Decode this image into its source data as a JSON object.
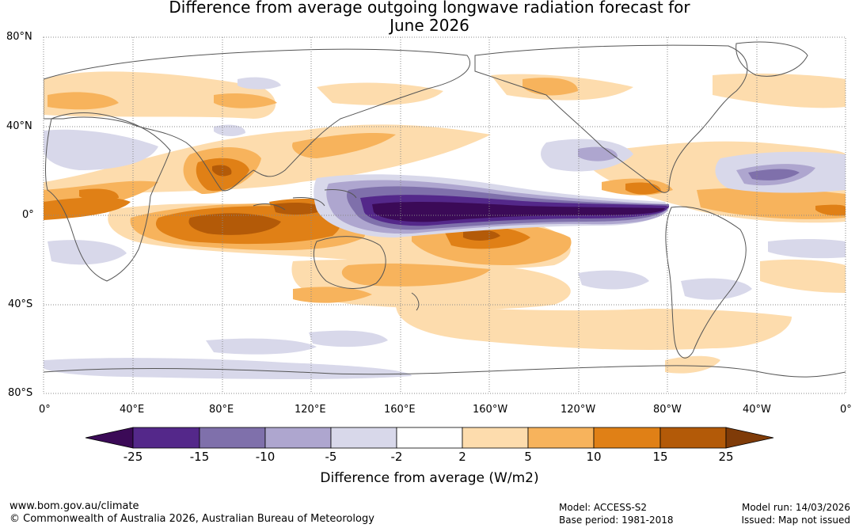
{
  "title": {
    "line1": "Difference from average outgoing longwave radiation forecast for",
    "line2": "June 2026"
  },
  "map": {
    "lat_labels": [
      "80°N",
      "40°N",
      "0°",
      "40°S",
      "80°S"
    ],
    "lon_labels": [
      "0°",
      "40°E",
      "80°E",
      "120°E",
      "160°E",
      "160°W",
      "120°W",
      "80°W",
      "40°W",
      "0°"
    ]
  },
  "colorbar": {
    "ticks": [
      "-25",
      "-15",
      "-10",
      "-5",
      "-2",
      "2",
      "5",
      "10",
      "15",
      "25"
    ],
    "colors": [
      "#3b0a57",
      "#54288a",
      "#7f70ab",
      "#aea6cf",
      "#d8d8ea",
      "#ffffff",
      "#fddcad",
      "#f7b35c",
      "#e08016",
      "#b35a08",
      "#7f3b08"
    ],
    "label": "Difference from average (W/m2)"
  },
  "footer": {
    "url": "www.bom.gov.au/climate",
    "copyright": "© Commonwealth of Australia 2026, Australian Bureau of Meteorology",
    "model": "Model: ACCESS-S2",
    "base_period": "Base period: 1981-2018",
    "model_run": "Model run: 14/03/2026",
    "issued": "Issued: Map not issued"
  }
}
